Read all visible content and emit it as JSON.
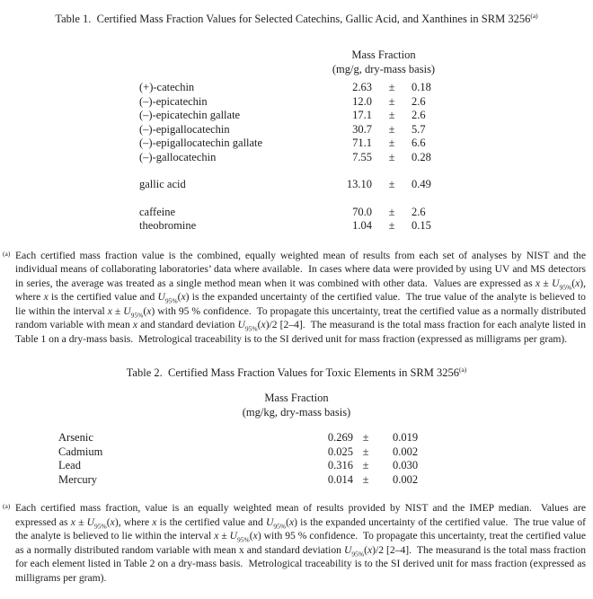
{
  "page": {
    "background": "#ffffff",
    "text_color": "#1d1d1d"
  },
  "table1": {
    "title_fmt": "Table 1.  Certified Mass Fraction Values for Selected Catechins, Gallic Acid, and Xanthines in SRM 3256[sup](a)[/sup]",
    "unit_header": {
      "line1": "Mass Fraction",
      "line2": "(mg/g, dry-mass basis)"
    },
    "pm_symbol": "±",
    "groups": [
      {
        "rows": [
          {
            "name": "(+)-catechin",
            "value": "2.63",
            "uncertainty": "0.18"
          },
          {
            "name": "(–)-epicatechin",
            "value": "12.0",
            "uncertainty": "2.6"
          },
          {
            "name": "(–)-epicatechin gallate",
            "value": "17.1",
            "uncertainty": "2.6"
          },
          {
            "name": "(–)-epigallocatechin",
            "value": "30.7",
            "uncertainty": "5.7"
          },
          {
            "name": "(–)-epigallocatechin gallate",
            "value": "71.1",
            "uncertainty": "6.6"
          },
          {
            "name": "(–)-gallocatechin",
            "value": "7.55",
            "uncertainty": "0.28"
          }
        ]
      },
      {
        "rows": [
          {
            "name": "gallic acid",
            "value": "13.10",
            "uncertainty": "0.49"
          }
        ]
      },
      {
        "rows": [
          {
            "name": "caffeine",
            "value": "70.0",
            "uncertainty": "2.6"
          },
          {
            "name": "theobromine",
            "value": "1.04",
            "uncertainty": "0.15"
          }
        ]
      }
    ],
    "footnote": {
      "marker": "(a)",
      "text_fmt": "Each certified mass fraction value is the combined, equally weighted mean of results from each set of analyses by NIST and the individual means of collaborating laboratories’ data where available.  In cases where data were provided by using UV and MS detectors in series, the average was treated as a single method mean when it was combined with other data.  Values are expressed as [i]x[/i] ± [i]U[/i][sub]95%[/sub]([i]x[/i]), where [i]x[/i] is the certified value and [i]U[/i][sub]95%[/sub]([i]x[/i]) is the expanded uncertainty of the certified value.  The true value of the analyte is believed to lie within the interval [i]x[/i] ± [i]U[/i][sub]95%[/sub]([i]x[/i]) with 95 % confidence.  To propagate this uncertainty, treat the certified value as a normally distributed random variable with mean [i]x[/i] and standard deviation [i]U[/i][sub]95%[/sub]([i]x[/i])/2 [2–4].  The measurand is the total mass fraction for each analyte listed in Table 1 on a dry-mass basis.  Metrological traceability is to the SI derived unit for mass fraction (expressed as milligrams per gram)."
    }
  },
  "table2": {
    "title_fmt": "Table 2.  Certified Mass Fraction Values for Toxic Elements in SRM 3256[sup](a)[/sup]",
    "unit_header": {
      "line1": "Mass Fraction",
      "line2": "(mg/kg, dry-mass basis)"
    },
    "pm_symbol": "±",
    "groups": [
      {
        "rows": [
          {
            "name": "Arsenic",
            "value": "0.269",
            "uncertainty": "0.019"
          },
          {
            "name": "Cadmium",
            "value": "0.025",
            "uncertainty": "0.002"
          },
          {
            "name": "Lead",
            "value": "0.316",
            "uncertainty": "0.030"
          },
          {
            "name": "Mercury",
            "value": "0.014",
            "uncertainty": "0.002"
          }
        ]
      }
    ],
    "footnote": {
      "marker": "(a)",
      "text_fmt": "Each certified mass fraction, value is an equally weighted mean of results provided by NIST and the IMEP median.  Values are expressed as [i]x[/i] ± [i]U[/i][sub]95%[/sub]([i]x[/i]), where [i]x[/i] is the certified value and [i]U[/i][sub]95%[/sub]([i]x[/i]) is the expanded uncertainty of the certified value.  The true value of the analyte is believed to lie within the interval [i]x[/i] ± [i]U[/i][sub]95%[/sub]([i]x[/i]) with 95 % confidence.  To propagate this uncertainty, treat the certified value as a normally distributed random variable with mean x and standard deviation [i]U[/i][sub]95%[/sub]([i]x[/i])/2 [2–4].  The measurand is the total mass fraction for each element listed in Table 2 on a dry-mass basis.  Metrological traceability is to the SI derived unit for mass fraction (expressed as milligrams per gram)."
    }
  }
}
